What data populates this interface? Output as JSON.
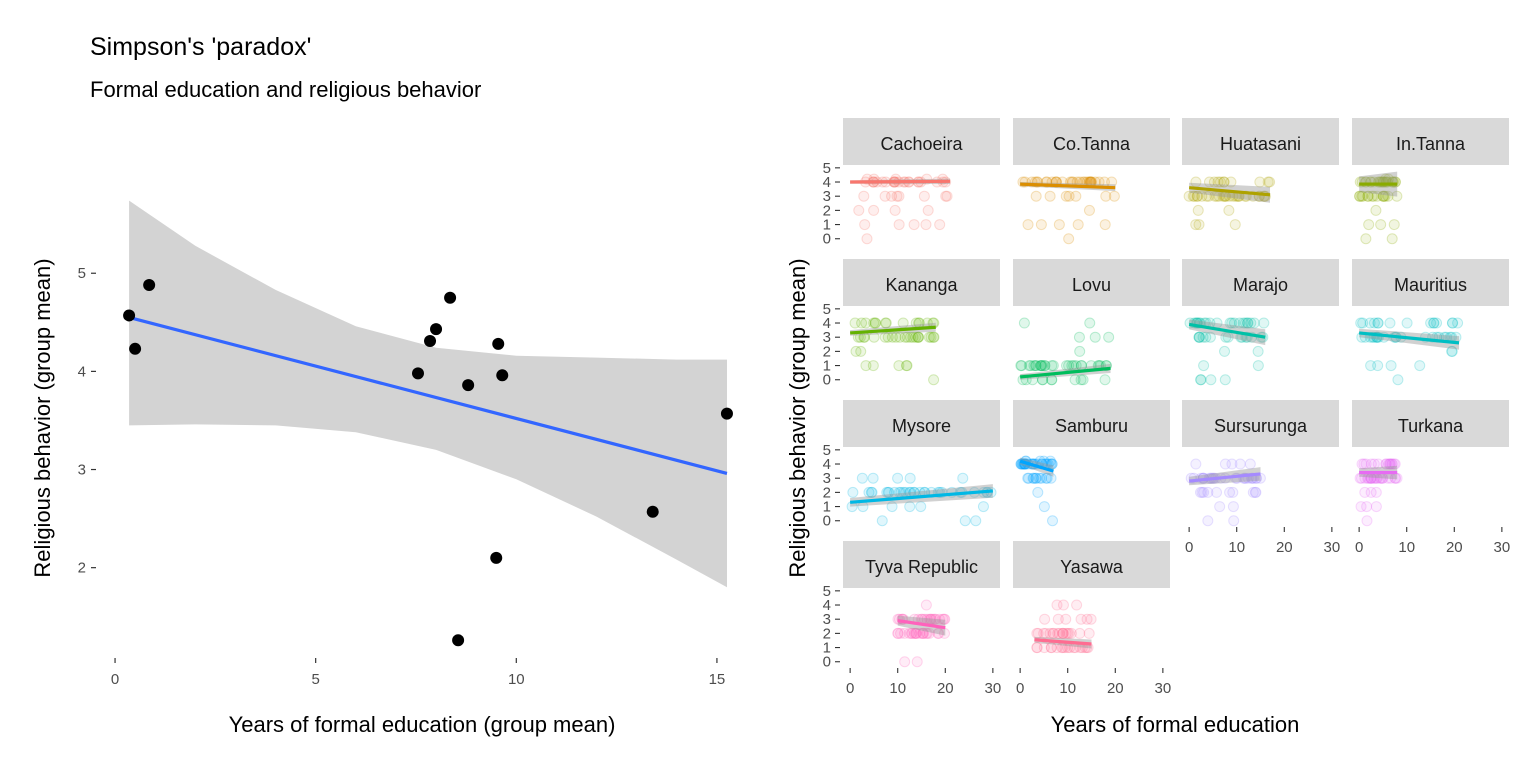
{
  "header": {
    "title": "Simpson's 'paradox'",
    "subtitle": "Formal education and religious behavior"
  },
  "colors": {
    "fit_line": "#3366FF",
    "ribbon": "#D3D3D3",
    "points": "#000000",
    "strip_bg": "#D9D9D9",
    "tick_text": "#4D4D4D",
    "tick_mark": "#333333"
  },
  "chart_data": [
    {
      "type": "scatter",
      "panel": "left",
      "xlabel": "Years of formal education (group mean)",
      "ylabel": "Religious behavior (group mean)",
      "xlim": [
        -0.4,
        15.6
      ],
      "ylim": [
        1.1,
        5.95
      ],
      "xticks": [
        0,
        5,
        10,
        15
      ],
      "yticks": [
        2,
        3,
        4,
        5
      ],
      "grid": false,
      "points": [
        {
          "x": 0.35,
          "y": 4.57
        },
        {
          "x": 0.5,
          "y": 4.23
        },
        {
          "x": 0.85,
          "y": 4.88
        },
        {
          "x": 7.55,
          "y": 3.98
        },
        {
          "x": 7.85,
          "y": 4.31
        },
        {
          "x": 8.0,
          "y": 4.43
        },
        {
          "x": 8.35,
          "y": 4.75
        },
        {
          "x": 8.55,
          "y": 1.26
        },
        {
          "x": 8.8,
          "y": 3.86
        },
        {
          "x": 9.5,
          "y": 2.1
        },
        {
          "x": 9.55,
          "y": 4.28
        },
        {
          "x": 9.65,
          "y": 3.96
        },
        {
          "x": 13.4,
          "y": 2.57
        },
        {
          "x": 15.25,
          "y": 3.57
        }
      ],
      "fit": {
        "x": [
          0.35,
          15.25
        ],
        "y": [
          4.55,
          2.96
        ],
        "ribbon_x": [
          0.35,
          2,
          4,
          6,
          8,
          10,
          12,
          14,
          15.25
        ],
        "ribbon_upper": [
          5.74,
          5.28,
          4.83,
          4.46,
          4.24,
          4.16,
          4.14,
          4.12,
          4.12
        ],
        "ribbon_lower": [
          3.45,
          3.46,
          3.45,
          3.38,
          3.2,
          2.9,
          2.52,
          2.08,
          1.8
        ]
      }
    },
    {
      "type": "scatter",
      "panel": "right",
      "faceted": true,
      "xlabel": "Years of formal education",
      "ylabel": "Religious behavior (group mean)",
      "xlim": [
        -1.5,
        31.5
      ],
      "ylim": [
        -0.3,
        5.2
      ],
      "xticks": [
        0,
        10,
        20,
        30
      ],
      "yticks": [
        0,
        1,
        2,
        3,
        4,
        5
      ],
      "grid": false,
      "facets": [
        {
          "name": "Cachoeira",
          "color": "#F8766D",
          "xmin": 0,
          "xmax": 21,
          "mean": 4.0,
          "fit": [
            4.0,
            4.05
          ],
          "ribbon": 0.12
        },
        {
          "name": "Co.Tanna",
          "color": "#DB8E00",
          "xmin": 0,
          "xmax": 20,
          "mean": 3.8,
          "fit": [
            3.85,
            3.6
          ],
          "ribbon": 0.15
        },
        {
          "name": "Huatasani",
          "color": "#AEA200",
          "xmin": 0,
          "xmax": 17,
          "mean": 3.3,
          "fit": [
            3.6,
            3.1
          ],
          "ribbon": 0.35
        },
        {
          "name": "In.Tanna",
          "color": "#8AAB00",
          "xmin": 0,
          "xmax": 8,
          "mean": 3.9,
          "fit": [
            3.85,
            3.85
          ],
          "ribbon": 0.55
        },
        {
          "name": "Kananga",
          "color": "#64B200",
          "xmin": 0,
          "xmax": 18,
          "mean": 3.5,
          "fit": [
            3.3,
            3.7
          ],
          "ribbon": 0.2
        },
        {
          "name": "Lovu",
          "color": "#00BD5C",
          "xmin": 0,
          "xmax": 19,
          "mean": 0.8,
          "fit": [
            0.2,
            0.8
          ],
          "ribbon": 0.2
        },
        {
          "name": "Marajo",
          "color": "#00C1A7",
          "xmin": 0,
          "xmax": 16,
          "mean": 3.6,
          "fit": [
            3.9,
            3.0
          ],
          "ribbon": 0.35
        },
        {
          "name": "Mauritius",
          "color": "#00BFC4",
          "xmin": 0,
          "xmax": 21,
          "mean": 3.3,
          "fit": [
            3.3,
            2.6
          ],
          "ribbon": 0.3
        },
        {
          "name": "Mysore",
          "color": "#00B8E5",
          "xmin": 0,
          "xmax": 30,
          "mean": 2.0,
          "fit": [
            1.3,
            2.1
          ],
          "ribbon": 0.3
        },
        {
          "name": "Samburu",
          "color": "#00A5FF",
          "xmin": 0,
          "xmax": 7,
          "mean": 4.0,
          "fit": [
            4.2,
            3.5
          ],
          "ribbon": 0.25
        },
        {
          "name": "Sursurunga",
          "color": "#A58AFF",
          "xmin": 0,
          "xmax": 15,
          "mean": 3.0,
          "fit": [
            2.8,
            3.3
          ],
          "ribbon": 0.3
        },
        {
          "name": "Turkana",
          "color": "#E76BF3",
          "xmin": 0,
          "xmax": 8,
          "mean": 3.4,
          "fit": [
            3.4,
            3.4
          ],
          "ribbon": 0.3
        },
        {
          "name": "Tyva Republic",
          "color": "#FF62BC",
          "xmin": 10,
          "xmax": 20,
          "mean": 2.6,
          "fit": [
            2.9,
            2.4
          ],
          "ribbon": 0.35
        },
        {
          "name": "Yasawa",
          "color": "#FF6C91",
          "xmin": 3,
          "xmax": 15,
          "mean": 1.4,
          "fit": [
            1.55,
            1.25
          ],
          "ribbon": 0.2
        }
      ]
    }
  ]
}
